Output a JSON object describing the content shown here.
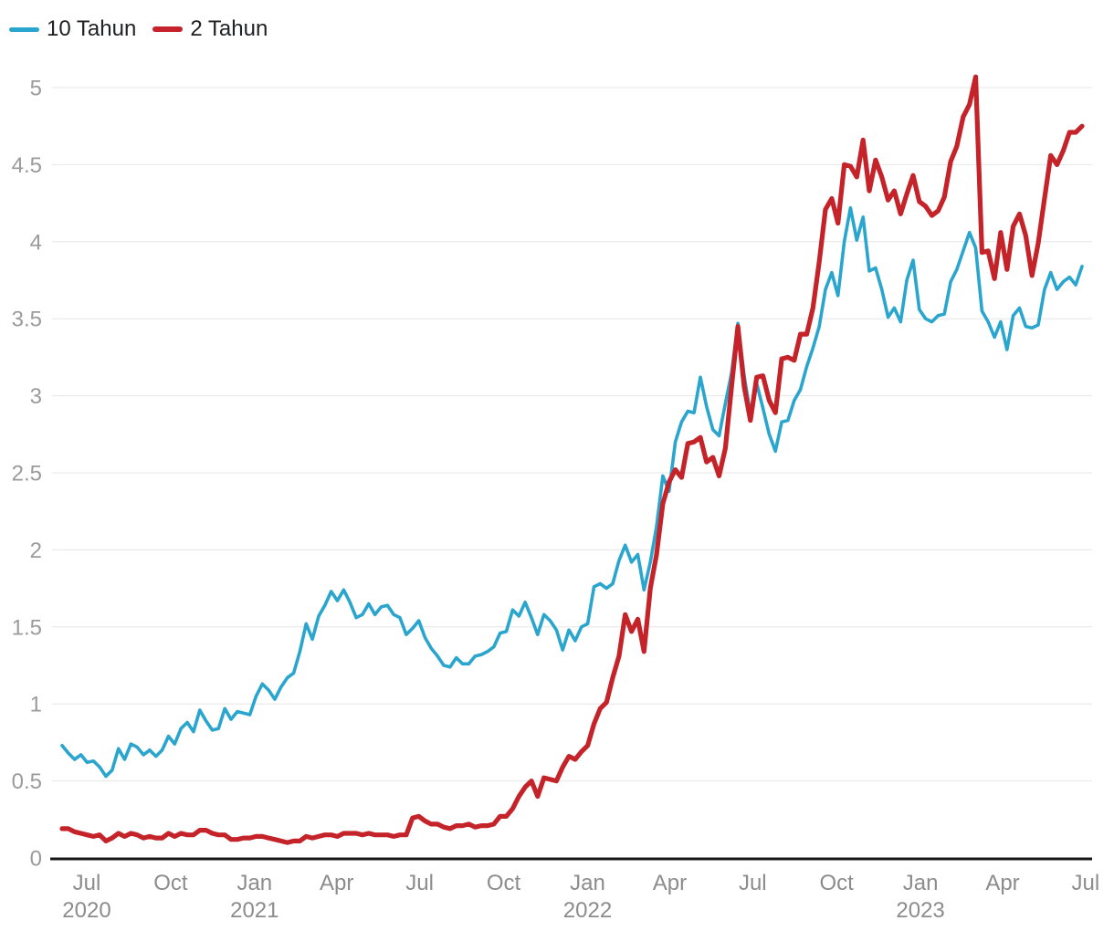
{
  "chart_data": {
    "type": "line",
    "title": "",
    "grid": true,
    "background": "#ffffff",
    "legend_position": "top-left",
    "y_axis": {
      "min": 0,
      "max": 5,
      "step": 0.5,
      "tick_labels": [
        "0",
        "0.5",
        "1",
        "1.5",
        "2",
        "2.5",
        "3",
        "3.5",
        "4",
        "4.5",
        "5"
      ],
      "label_color": "#9b9b9b",
      "grid_color": "#e6e6e6",
      "axis_line_color": "#161616"
    },
    "x_axis": {
      "label_color": "#8c8c8c",
      "ticks": [
        {
          "label": "Jul",
          "year": "2020",
          "day": 0
        },
        {
          "label": "Oct",
          "day": 92
        },
        {
          "label": "Jan",
          "year": "2021",
          "day": 184
        },
        {
          "label": "Apr",
          "day": 274
        },
        {
          "label": "Jul",
          "day": 365
        },
        {
          "label": "Oct",
          "day": 457
        },
        {
          "label": "Jan",
          "year": "2022",
          "day": 549
        },
        {
          "label": "Apr",
          "day": 639
        },
        {
          "label": "Jul",
          "day": 730
        },
        {
          "label": "Oct",
          "day": 822
        },
        {
          "label": "Jan",
          "year": "2023",
          "day": 914
        },
        {
          "label": "Apr",
          "day": 1004
        },
        {
          "label": "Jul",
          "day": 1095
        }
      ]
    },
    "series": [
      {
        "name": "10 Tahun",
        "color": "#2aa5ce",
        "stroke_width": 3.6,
        "values": [
          0.73,
          0.68,
          0.64,
          0.67,
          0.62,
          0.63,
          0.59,
          0.53,
          0.57,
          0.71,
          0.64,
          0.74,
          0.72,
          0.67,
          0.7,
          0.66,
          0.7,
          0.79,
          0.74,
          0.84,
          0.88,
          0.82,
          0.96,
          0.89,
          0.83,
          0.84,
          0.97,
          0.9,
          0.95,
          0.94,
          0.93,
          1.05,
          1.13,
          1.09,
          1.03,
          1.11,
          1.17,
          1.2,
          1.34,
          1.52,
          1.42,
          1.57,
          1.64,
          1.73,
          1.67,
          1.74,
          1.66,
          1.56,
          1.58,
          1.65,
          1.58,
          1.63,
          1.64,
          1.58,
          1.56,
          1.45,
          1.49,
          1.54,
          1.43,
          1.36,
          1.31,
          1.25,
          1.24,
          1.3,
          1.26,
          1.26,
          1.31,
          1.32,
          1.34,
          1.37,
          1.46,
          1.47,
          1.61,
          1.57,
          1.66,
          1.56,
          1.45,
          1.58,
          1.54,
          1.48,
          1.35,
          1.48,
          1.41,
          1.5,
          1.52,
          1.76,
          1.78,
          1.75,
          1.78,
          1.93,
          2.03,
          1.92,
          1.97,
          1.74,
          1.92,
          2.15,
          2.48,
          2.38,
          2.7,
          2.83,
          2.9,
          2.89,
          3.12,
          2.93,
          2.78,
          2.74,
          2.95,
          3.15,
          3.47,
          3.13,
          2.88,
          3.08,
          2.92,
          2.75,
          2.64,
          2.83,
          2.84,
          2.97,
          3.04,
          3.19,
          3.31,
          3.45,
          3.69,
          3.8,
          3.65,
          4.0,
          4.22,
          4.01,
          4.16,
          3.81,
          3.83,
          3.69,
          3.51,
          3.57,
          3.48,
          3.75,
          3.88,
          3.56,
          3.5,
          3.48,
          3.52,
          3.53,
          3.74,
          3.82,
          3.94,
          4.06,
          3.96,
          3.55,
          3.48,
          3.38,
          3.48,
          3.3,
          3.52,
          3.57,
          3.45,
          3.44,
          3.46,
          3.69,
          3.8,
          3.69,
          3.74,
          3.77,
          3.72,
          3.84
        ]
      },
      {
        "name": "2 Tahun",
        "color": "#c42329",
        "stroke_width": 5.2,
        "values": [
          0.19,
          0.19,
          0.17,
          0.16,
          0.15,
          0.14,
          0.15,
          0.11,
          0.13,
          0.16,
          0.14,
          0.16,
          0.15,
          0.13,
          0.14,
          0.13,
          0.13,
          0.16,
          0.14,
          0.16,
          0.15,
          0.15,
          0.18,
          0.18,
          0.16,
          0.15,
          0.15,
          0.12,
          0.12,
          0.13,
          0.13,
          0.14,
          0.14,
          0.13,
          0.12,
          0.11,
          0.1,
          0.11,
          0.11,
          0.14,
          0.13,
          0.14,
          0.15,
          0.15,
          0.14,
          0.16,
          0.16,
          0.16,
          0.15,
          0.16,
          0.15,
          0.15,
          0.15,
          0.14,
          0.15,
          0.15,
          0.26,
          0.27,
          0.24,
          0.22,
          0.22,
          0.2,
          0.19,
          0.21,
          0.21,
          0.22,
          0.2,
          0.21,
          0.21,
          0.22,
          0.27,
          0.27,
          0.32,
          0.4,
          0.46,
          0.5,
          0.4,
          0.52,
          0.51,
          0.5,
          0.59,
          0.66,
          0.64,
          0.69,
          0.73,
          0.87,
          0.97,
          1.01,
          1.17,
          1.31,
          1.58,
          1.47,
          1.55,
          1.34,
          1.75,
          1.97,
          2.3,
          2.44,
          2.52,
          2.47,
          2.69,
          2.7,
          2.73,
          2.57,
          2.6,
          2.48,
          2.66,
          3.06,
          3.45,
          3.06,
          2.84,
          3.12,
          3.13,
          2.97,
          2.89,
          3.24,
          3.25,
          3.23,
          3.4,
          3.4,
          3.57,
          3.87,
          4.21,
          4.28,
          4.12,
          4.5,
          4.49,
          4.42,
          4.66,
          4.33,
          4.53,
          4.42,
          4.27,
          4.33,
          4.18,
          4.31,
          4.43,
          4.26,
          4.23,
          4.17,
          4.2,
          4.29,
          4.52,
          4.62,
          4.81,
          4.89,
          5.07,
          3.93,
          3.94,
          3.76,
          4.06,
          3.82,
          4.1,
          4.18,
          4.04,
          3.78,
          3.99,
          4.28,
          4.56,
          4.5,
          4.59,
          4.71,
          4.71,
          4.75
        ]
      }
    ]
  }
}
